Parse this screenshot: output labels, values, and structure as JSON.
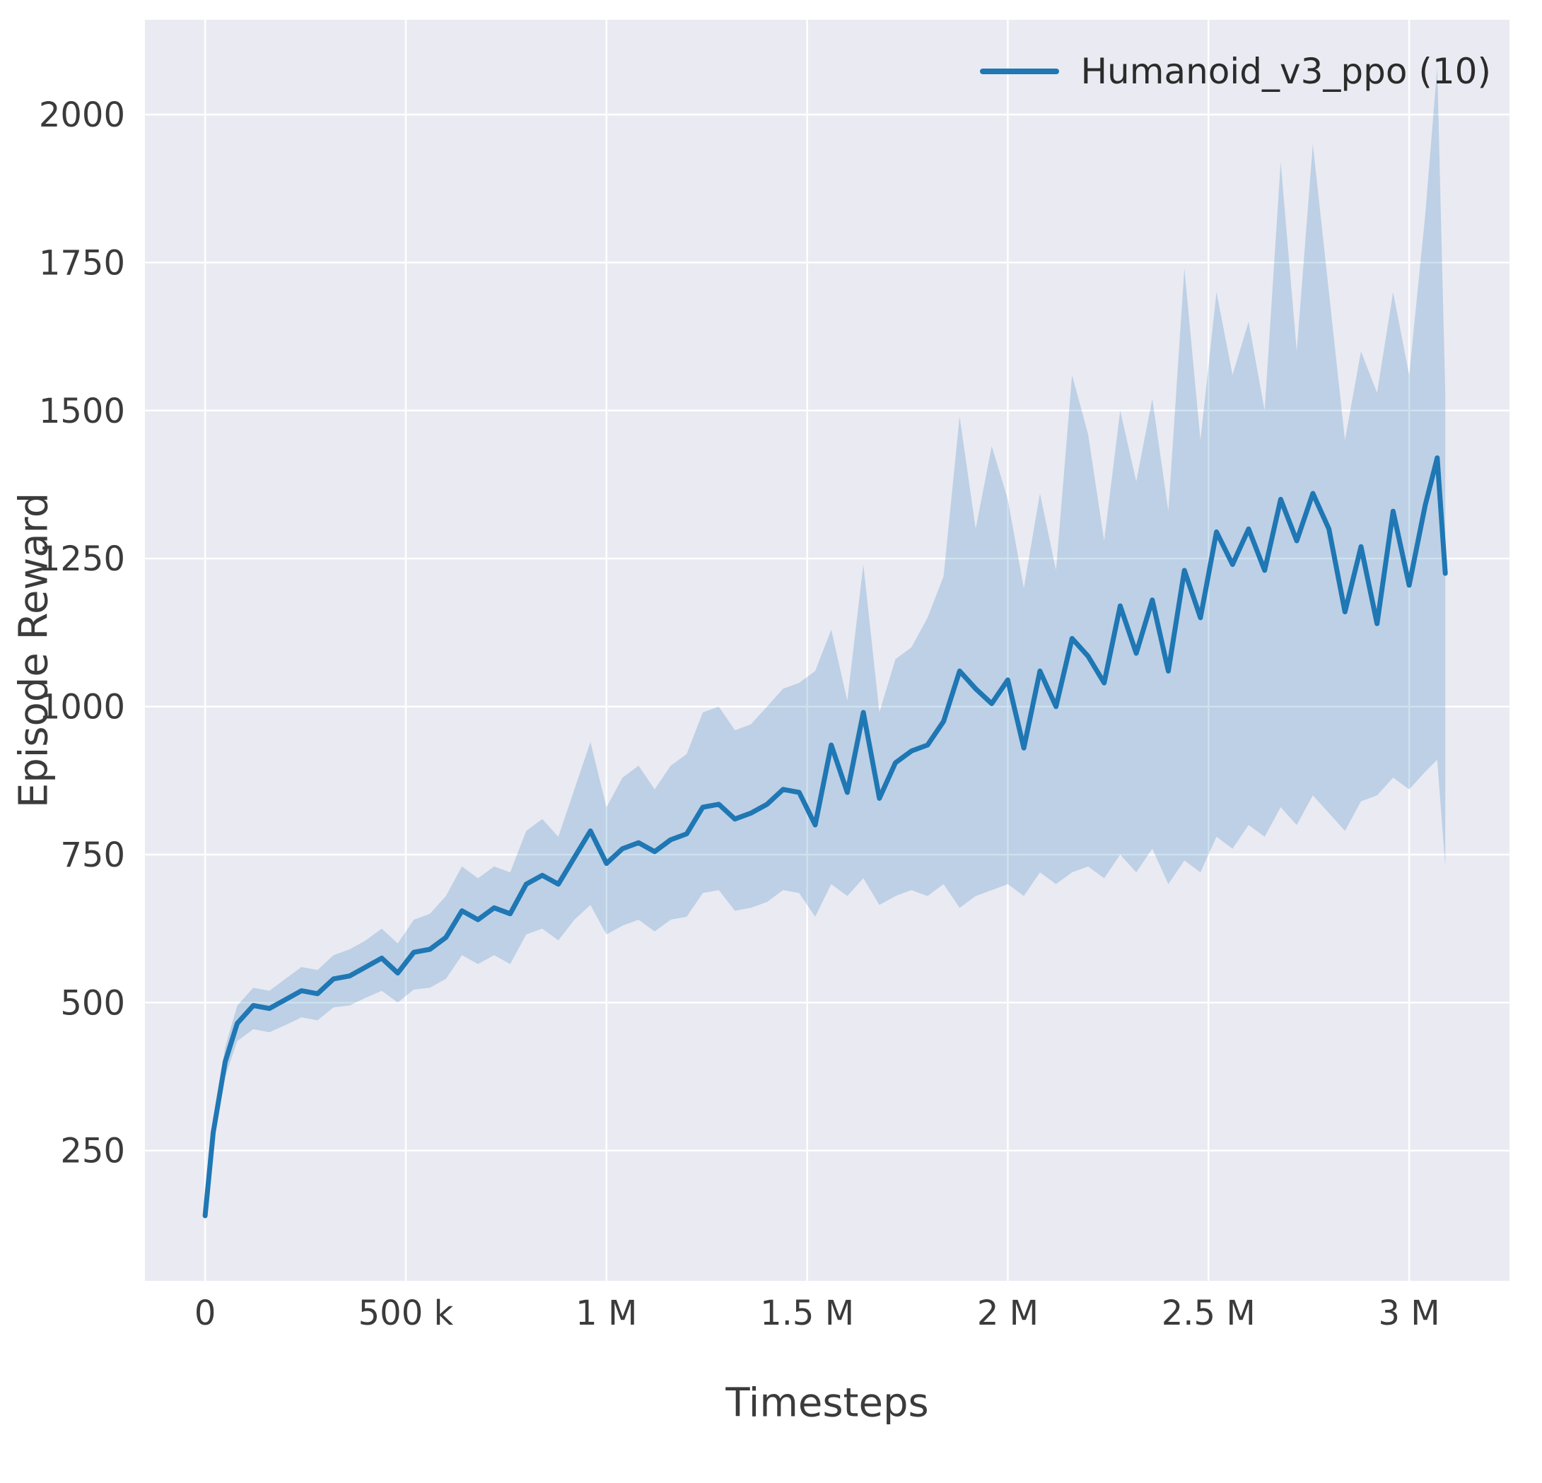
{
  "figure": {
    "background": "#ffffff"
  },
  "chart_data": {
    "type": "line",
    "title": "",
    "xlabel": "Timesteps",
    "ylabel": "Episode Reward",
    "legend": {
      "position": "upper right",
      "entries": [
        "Humanoid_v3_ppo (10)"
      ]
    },
    "axes": {
      "xlim": [
        -150000,
        3250000
      ],
      "ylim": [
        30,
        2160
      ],
      "grid": true,
      "background": "#eaeaf2",
      "grid_color": "#ffffff",
      "x_ticks": [
        0,
        500000,
        1000000,
        1500000,
        2000000,
        2500000,
        3000000
      ],
      "x_tick_labels": [
        "0",
        "500 k",
        "1 M",
        "1.5 M",
        "2 M",
        "2.5 M",
        "3 M"
      ],
      "y_ticks": [
        250,
        500,
        750,
        1000,
        1250,
        1500,
        1750,
        2000
      ],
      "y_tick_labels": [
        "250",
        "500",
        "750",
        "1000",
        "1250",
        "1500",
        "1750",
        "2000"
      ]
    },
    "series": [
      {
        "name": "Humanoid_v3_ppo (10)",
        "color": "#1f77b4",
        "band_color": "#1f77b4",
        "band_opacity": 0.22,
        "x": [
          0,
          20000,
          50000,
          80000,
          120000,
          160000,
          200000,
          240000,
          280000,
          320000,
          360000,
          400000,
          440000,
          480000,
          520000,
          560000,
          600000,
          640000,
          680000,
          720000,
          760000,
          800000,
          840000,
          880000,
          920000,
          960000,
          1000000,
          1040000,
          1080000,
          1120000,
          1160000,
          1200000,
          1240000,
          1280000,
          1320000,
          1360000,
          1400000,
          1440000,
          1480000,
          1520000,
          1560000,
          1600000,
          1640000,
          1680000,
          1720000,
          1760000,
          1800000,
          1840000,
          1880000,
          1920000,
          1960000,
          2000000,
          2040000,
          2080000,
          2120000,
          2160000,
          2200000,
          2240000,
          2280000,
          2320000,
          2360000,
          2400000,
          2440000,
          2480000,
          2520000,
          2560000,
          2600000,
          2640000,
          2680000,
          2720000,
          2760000,
          2800000,
          2840000,
          2880000,
          2920000,
          2960000,
          3000000,
          3040000,
          3070000,
          3090000
        ],
        "mean": [
          140,
          280,
          400,
          465,
          495,
          490,
          505,
          520,
          515,
          540,
          545,
          560,
          575,
          550,
          585,
          590,
          610,
          655,
          640,
          660,
          650,
          700,
          715,
          700,
          745,
          790,
          735,
          760,
          770,
          755,
          775,
          785,
          830,
          835,
          810,
          820,
          835,
          860,
          855,
          800,
          935,
          855,
          990,
          845,
          905,
          925,
          935,
          975,
          1060,
          1030,
          1005,
          1045,
          930,
          1060,
          1000,
          1115,
          1085,
          1040,
          1170,
          1090,
          1180,
          1060,
          1230,
          1150,
          1295,
          1240,
          1300,
          1230,
          1350,
          1280,
          1360,
          1300,
          1160,
          1270,
          1140,
          1330,
          1205,
          1340,
          1420,
          1225
        ],
        "band_lower": [
          130,
          260,
          375,
          435,
          455,
          450,
          462,
          475,
          470,
          492,
          495,
          508,
          520,
          500,
          522,
          525,
          540,
          580,
          565,
          580,
          565,
          615,
          625,
          605,
          640,
          665,
          615,
          630,
          640,
          620,
          640,
          645,
          685,
          690,
          655,
          660,
          670,
          690,
          685,
          645,
          700,
          680,
          710,
          665,
          680,
          690,
          680,
          700,
          660,
          680,
          690,
          700,
          680,
          720,
          700,
          720,
          730,
          710,
          750,
          720,
          760,
          700,
          740,
          720,
          780,
          760,
          800,
          780,
          830,
          800,
          850,
          820,
          790,
          840,
          850,
          880,
          860,
          890,
          910,
          730
        ],
        "band_upper": [
          150,
          300,
          425,
          495,
          525,
          520,
          540,
          560,
          555,
          580,
          590,
          605,
          625,
          600,
          640,
          650,
          680,
          730,
          710,
          730,
          720,
          790,
          810,
          780,
          860,
          940,
          830,
          880,
          900,
          860,
          900,
          920,
          990,
          1000,
          960,
          970,
          1000,
          1030,
          1040,
          1060,
          1130,
          1010,
          1240,
          990,
          1080,
          1100,
          1150,
          1220,
          1490,
          1300,
          1440,
          1350,
          1200,
          1360,
          1230,
          1560,
          1460,
          1280,
          1500,
          1380,
          1520,
          1330,
          1740,
          1450,
          1700,
          1560,
          1650,
          1500,
          1920,
          1600,
          1950,
          1700,
          1450,
          1600,
          1530,
          1700,
          1560,
          1830,
          2080,
          1530
        ]
      }
    ]
  }
}
